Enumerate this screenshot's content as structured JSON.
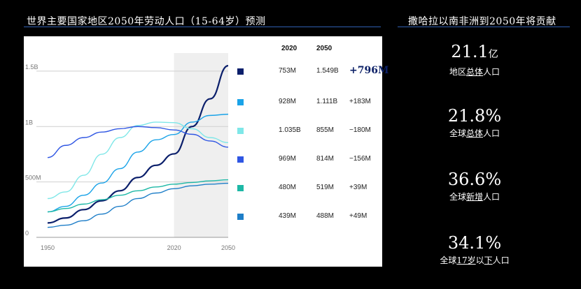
{
  "header": {
    "left_title": "世界主要国家地区2050年劳动人口（15-64岁）预测",
    "right_title": "撒哈拉以南非洲到2050年将贡献"
  },
  "chart_data": {
    "type": "line",
    "x": [
      1950,
      1960,
      1970,
      1980,
      1990,
      2000,
      2010,
      2020,
      2030,
      2040,
      2050
    ],
    "xticks": [
      "1950",
      "2020",
      "2050"
    ],
    "yticks": [
      "0",
      "500M",
      "1B",
      "1.5B"
    ],
    "ylim": [
      0,
      1600
    ],
    "shaded_region": [
      2020,
      2050
    ],
    "table_headers": [
      "2020",
      "2050"
    ],
    "series": [
      {
        "color": "#0b1f6b",
        "values": [
          130,
          175,
          250,
          330,
          420,
          540,
          650,
          753,
          1000,
          1250,
          1549
        ],
        "v2020": "753M",
        "v2050": "1.549B",
        "change": "+796M"
      },
      {
        "color": "#1aa3e8",
        "values": [
          230,
          280,
          380,
          490,
          620,
          770,
          880,
          928,
          1040,
          1100,
          1111
        ],
        "v2020": "928M",
        "v2050": "1.111B",
        "change": "+183M"
      },
      {
        "color": "#7fe7e8",
        "values": [
          350,
          410,
          560,
          750,
          900,
          1010,
          1040,
          1035,
          980,
          900,
          855
        ],
        "v2020": "1.035B",
        "v2050": "855M",
        "change": "−180M"
      },
      {
        "color": "#2f56e3",
        "values": [
          720,
          830,
          900,
          950,
          980,
          1000,
          990,
          969,
          930,
          870,
          814
        ],
        "v2020": "969M",
        "v2050": "814M",
        "change": "−156M"
      },
      {
        "color": "#1db8a6",
        "values": [
          230,
          260,
          300,
          340,
          380,
          420,
          455,
          480,
          495,
          510,
          519
        ],
        "v2020": "480M",
        "v2050": "519M",
        "change": "+39M"
      },
      {
        "color": "#1e7ec8",
        "values": [
          90,
          110,
          150,
          210,
          280,
          350,
          400,
          439,
          465,
          480,
          488
        ],
        "v2020": "439M",
        "v2050": "488M",
        "change": "+49M"
      }
    ]
  },
  "stats": [
    {
      "value": "21.1",
      "unit": "亿",
      "label": "地区总体人口"
    },
    {
      "value": "21.8%",
      "unit": "",
      "label": "全球总体人口"
    },
    {
      "value": "36.6%",
      "unit": "",
      "label": "全球新增人口"
    },
    {
      "value": "34.1%",
      "unit": "",
      "label": "全球17岁以下人口"
    }
  ]
}
